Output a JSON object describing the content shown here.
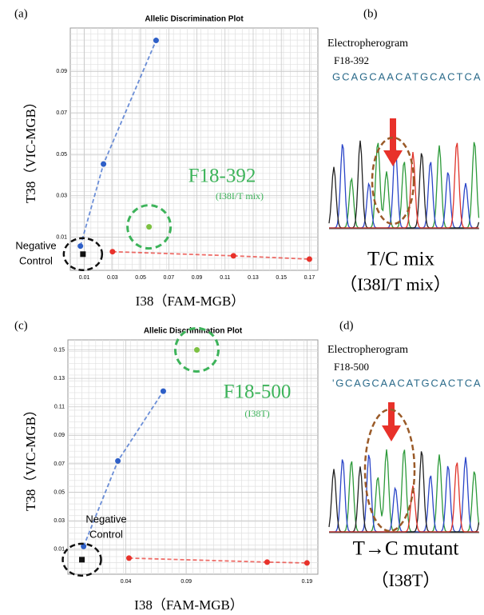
{
  "chart_data": [
    {
      "type": "scatter",
      "panel": "(a)",
      "title": "Allelic Discrimination Plot",
      "x_label": "I38（FAM-MGB）",
      "y_label": "T38（VIC-MGB）",
      "xlim": [
        0,
        0.176
      ],
      "ylim": [
        -0.006,
        0.111
      ],
      "xticks": [
        0.01,
        0.03,
        0.05,
        0.07,
        0.09,
        0.11,
        0.13,
        0.15,
        0.17
      ],
      "yticks": [
        0.01,
        0.03,
        0.05,
        0.07,
        0.09
      ],
      "grid": true,
      "series": [
        {
          "color": "#2e5fc7",
          "marker": "circle",
          "trend": true,
          "x": [
            0.0072,
            0.0236,
            0.061
          ],
          "values": [
            0.0057,
            0.0453,
            0.105
          ]
        },
        {
          "color": "#7dc142",
          "marker": "circle",
          "x": [
            0.056
          ],
          "values": [
            0.015
          ]
        },
        {
          "color": "#e8312a",
          "marker": "circle",
          "trend": true,
          "x": [
            0.03,
            0.116,
            0.17
          ],
          "values": [
            0.003,
            0.001,
            -0.0006
          ]
        },
        {
          "color": "#111111",
          "marker": "square",
          "x": [
            0.009
          ],
          "values": [
            0.0018
          ]
        }
      ],
      "annotations": [
        "F18-392",
        "(I38I/T mix)"
      ],
      "negative_control": [
        "Negative",
        "Control"
      ]
    },
    {
      "type": "scatter",
      "panel": "(c)",
      "title": "Allelic Discrimination Plot",
      "x_label": "I38（FAM-MGB）",
      "y_label": "T38（VIC-MGB）",
      "xlim": [
        -0.008,
        0.199
      ],
      "ylim": [
        -0.0075,
        0.157
      ],
      "xticks": [
        0.04,
        0.09,
        0.19
      ],
      "yticks": [
        0.01,
        0.03,
        0.05,
        0.07,
        0.09,
        0.11,
        0.13,
        0.15
      ],
      "grid": true,
      "series": [
        {
          "color": "#2e5fc7",
          "marker": "circle",
          "trend": true,
          "x": [
            0.005,
            0.0334,
            0.071
          ],
          "values": [
            0.012,
            0.072,
            0.121
          ]
        },
        {
          "color": "#7dc142",
          "marker": "circle",
          "x": [
            0.0988
          ],
          "values": [
            0.15
          ]
        },
        {
          "color": "#e8312a",
          "marker": "circle",
          "trend": true,
          "x": [
            0.0426,
            0.157,
            0.19
          ],
          "values": [
            0.0038,
            0.001,
            0.0004
          ]
        },
        {
          "color": "#111111",
          "marker": "square",
          "x": [
            0.0036
          ],
          "values": [
            0.0027
          ]
        }
      ],
      "annotations": [
        "F18-500",
        "(I38T)"
      ],
      "negative_control": [
        "Negative",
        "Control"
      ]
    }
  ],
  "electropherograms": [
    {
      "panel": "(b)",
      "title": "Electropherogram",
      "sample": "F18-392",
      "sequence": "GCAGCAACATGCACTCA",
      "result": [
        "T/C mix",
        "（I38I/T mix）"
      ]
    },
    {
      "panel": "(d)",
      "title": "Electropherogram",
      "sample": "F18-500",
      "sequence": "'GCAGCAACATGCACTCA",
      "result": [
        "T→C mutant",
        "（I38T）"
      ]
    }
  ]
}
